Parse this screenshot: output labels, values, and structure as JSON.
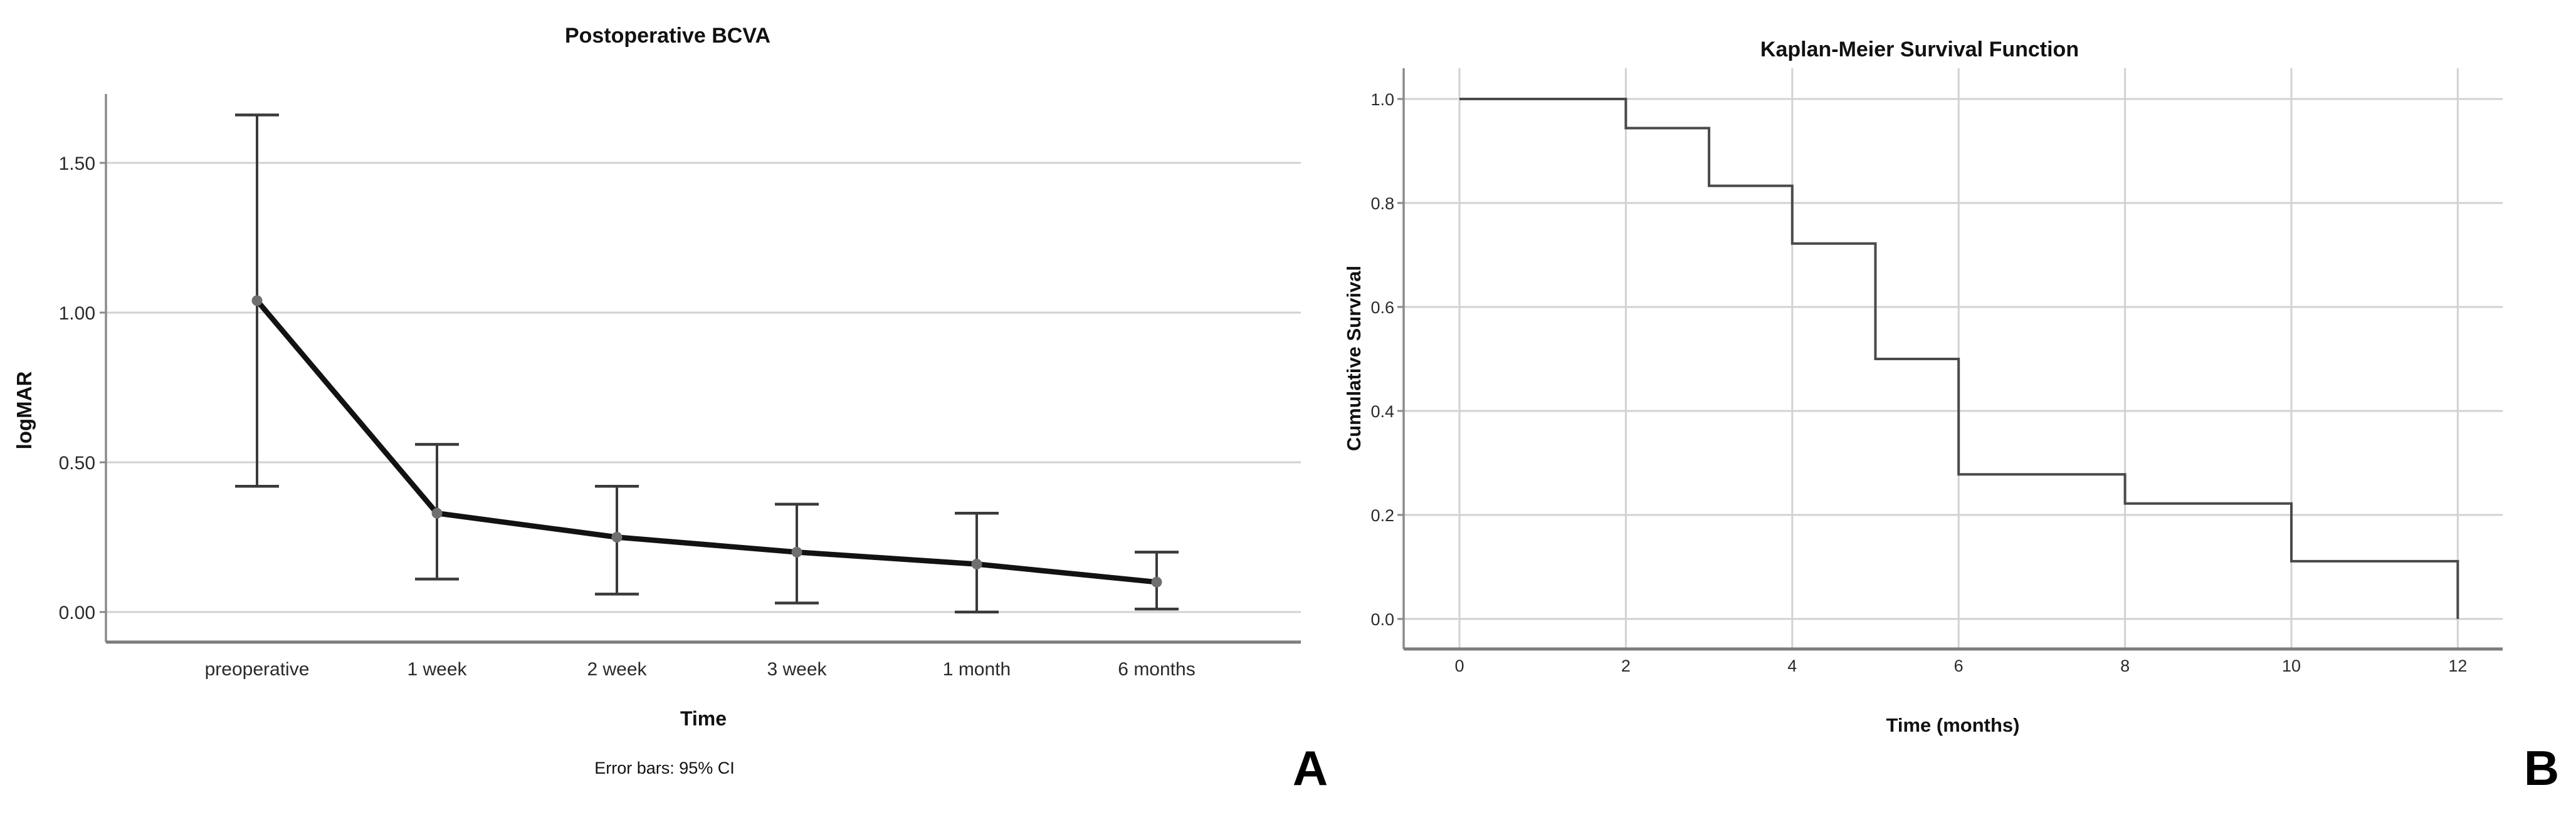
{
  "figure": {
    "panel_a_label": "A",
    "panel_b_label": "B"
  },
  "colors": {
    "background": "#ffffff",
    "gridline": "#d2d2d2",
    "axis": "#8a8a8a",
    "axis_frame": "#7d7d7d",
    "error_bar": "#3a3a3a",
    "series_line": "#121212",
    "marker": "#6f6f6f",
    "km_line": "#4a4a4a",
    "title_text": "#111111",
    "tick_text": "#2a2a2a",
    "panel_letter": "#000000"
  },
  "chart_data": [
    {
      "type": "line",
      "panel": "A",
      "title": "Postoperative BCVA",
      "xlabel": "Time",
      "ylabel": "logMAR",
      "footnote": "Error bars: 95% CI",
      "categories": [
        "preoperative",
        "1 week",
        "2 week",
        "3 week",
        "1 month",
        "6 months"
      ],
      "values": [
        1.04,
        0.33,
        0.25,
        0.2,
        0.16,
        0.1
      ],
      "ci_low": [
        0.42,
        0.11,
        0.06,
        0.03,
        0.0,
        0.01
      ],
      "ci_high": [
        1.66,
        0.56,
        0.42,
        0.36,
        0.33,
        0.2
      ],
      "yticks": [
        {
          "v": 1.5,
          "label": "1.50"
        },
        {
          "v": 1.0,
          "label": "1.00"
        },
        {
          "v": 0.5,
          "label": "0.50"
        },
        {
          "v": 0.0,
          "label": "0.00"
        }
      ],
      "ylim": [
        -0.1,
        1.73
      ],
      "grid": "horizontal",
      "legend": "none",
      "error_bars": "95% CI"
    },
    {
      "type": "line",
      "subtype": "step",
      "panel": "B",
      "title": "Kaplan-Meier Survival Function",
      "xlabel": "Time (months)",
      "ylabel": "Cumulative Survival",
      "x": [
        0,
        2,
        2,
        3,
        3,
        4,
        4,
        5,
        5,
        6,
        6,
        8,
        8,
        10,
        10,
        12,
        12
      ],
      "y": [
        1.0,
        1.0,
        0.944,
        0.944,
        0.833,
        0.833,
        0.722,
        0.722,
        0.5,
        0.5,
        0.278,
        0.278,
        0.222,
        0.222,
        0.111,
        0.111,
        0.0
      ],
      "event_times": [
        2,
        3,
        4,
        5,
        6,
        8,
        10,
        12
      ],
      "survival_after_event": [
        0.944,
        0.833,
        0.722,
        0.5,
        0.278,
        0.222,
        0.111,
        0.0
      ],
      "xticks": [
        {
          "v": 0,
          "label": "0"
        },
        {
          "v": 2,
          "label": "2"
        },
        {
          "v": 4,
          "label": "4"
        },
        {
          "v": 6,
          "label": "6"
        },
        {
          "v": 8,
          "label": "8"
        },
        {
          "v": 10,
          "label": "10"
        },
        {
          "v": 12,
          "label": "12"
        }
      ],
      "yticks": [
        {
          "v": 1.0,
          "label": "1.0"
        },
        {
          "v": 0.8,
          "label": "0.8"
        },
        {
          "v": 0.6,
          "label": "0.6"
        },
        {
          "v": 0.4,
          "label": "0.4"
        },
        {
          "v": 0.2,
          "label": "0.2"
        },
        {
          "v": 0.0,
          "label": "0.0"
        }
      ],
      "xlim": [
        -0.67,
        12.54
      ],
      "ylim": [
        -0.06,
        1.06
      ],
      "grid": "both",
      "legend": "none"
    }
  ]
}
